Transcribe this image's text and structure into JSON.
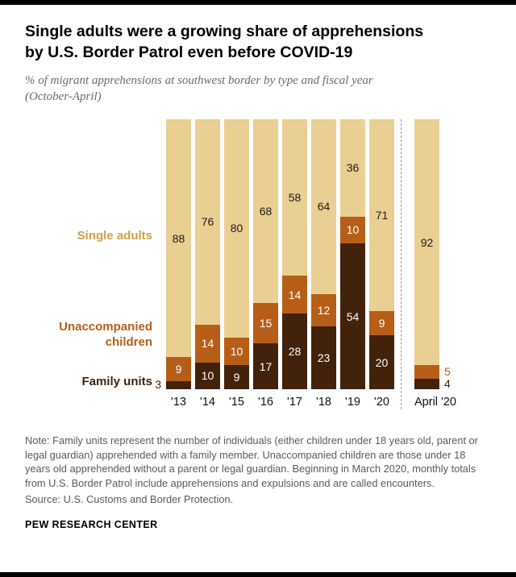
{
  "page": {
    "background": "#ffffff",
    "top_rule_color": "#000000",
    "bottom_rule_color": "#000000"
  },
  "header": {
    "title_line1": "Single adults were a growing share of apprehensions",
    "title_line2": "by U.S. Border Patrol even before COVID-19",
    "subtitle_line1": "% of migrant apprehensions at southwest border by type and fiscal year",
    "subtitle_line2": "(October-April)"
  },
  "legend": {
    "single_adults": "Single adults",
    "unaccompanied_children_line1": "Unaccompanied",
    "unaccompanied_children_line2": "children",
    "family_units": "Family units"
  },
  "chart_data": {
    "type": "bar",
    "stacked": true,
    "unit": "percent",
    "ylim": [
      0,
      100
    ],
    "grid": false,
    "legend_position": "left",
    "categories": [
      "'13",
      "'14",
      "'15",
      "'16",
      "'17",
      "'18",
      "'19",
      "'20",
      "April '20"
    ],
    "series": [
      {
        "name": "Family units",
        "color": "#42220a",
        "label_color": "#ffffff",
        "values": [
          3,
          10,
          9,
          17,
          28,
          23,
          54,
          20,
          4
        ]
      },
      {
        "name": "Unaccompanied children",
        "color": "#b65e18",
        "label_color": "#ffffff",
        "values": [
          9,
          14,
          10,
          15,
          14,
          12,
          10,
          9,
          5
        ]
      },
      {
        "name": "Single adults",
        "color": "#eacf92",
        "label_color": "#1a1a1a",
        "values": [
          88,
          76,
          80,
          68,
          58,
          64,
          36,
          71,
          92
        ]
      }
    ],
    "series_label_colors": {
      "Family units": "#42220a",
      "Unaccompanied children": "#b65e18",
      "Single adults": "#d0a04a"
    },
    "separator": {
      "after_category": "'20",
      "style": "dashed",
      "color": "#9b9b9b"
    }
  },
  "footer": {
    "note": "Note: Family units represent the number of individuals (either children under 18 years old, parent or legal guardian) apprehended with a family member. Unaccompanied children are those under 18 years old apprehended without a parent or legal guardian.  Beginning in March 2020, monthly totals from U.S. Border Patrol include apprehensions and expulsions and are called encounters.",
    "source": "Source: U.S. Customs and Border Protection.",
    "brand": "PEW RESEARCH CENTER"
  }
}
